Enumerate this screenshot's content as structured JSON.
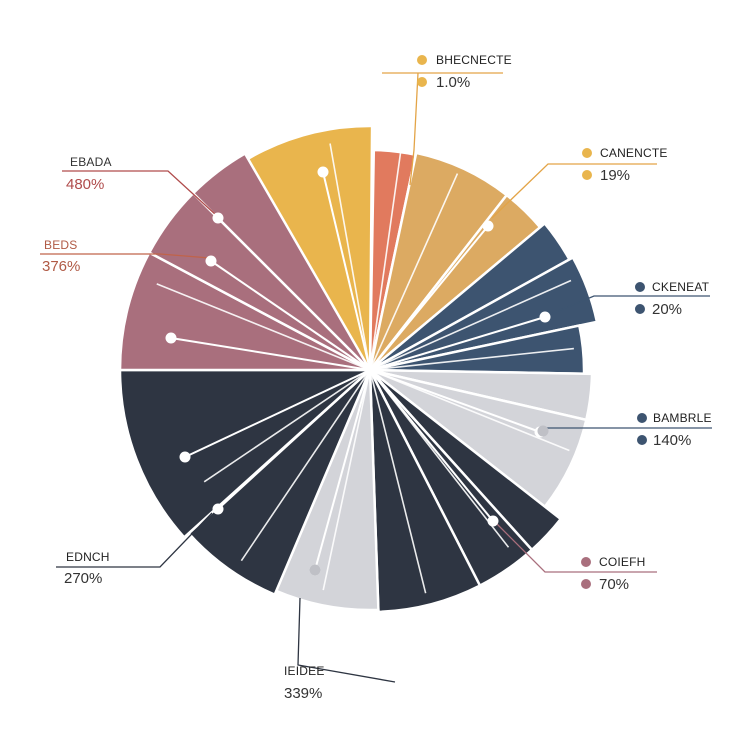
{
  "chart_data": {
    "type": "pie",
    "title": "",
    "legend": "none",
    "series": [
      {
        "label": "BHECNECTE",
        "value_text": "1.0%",
        "value": 1.0,
        "color": "#e17a5e",
        "callout": "label"
      },
      {
        "label": "CANENCTE",
        "value_text": "19%",
        "value": 19,
        "color": "#dcaa62",
        "callout": "dot"
      },
      {
        "label": "CKENEAT",
        "value_text": "20%",
        "value": 20,
        "color": "#3d5470",
        "callout": "dot"
      },
      {
        "label": "BAMBRLE",
        "value_text": "140%",
        "value": 140,
        "color": "#d3d4d9",
        "callout": "dot"
      },
      {
        "label": "COIEFH",
        "value_text": "70%",
        "value": 70,
        "color": "#2e3542",
        "callout": "dot"
      },
      {
        "label": "IEIDEE",
        "value_text": "339%",
        "value": 339,
        "color": "#d3d4d9",
        "callout": "none"
      },
      {
        "label": "EDNCH",
        "value_text": "270%",
        "value": 270,
        "color": "#2e3542",
        "callout": "none"
      },
      {
        "label": "BEDS",
        "value_text": "376%",
        "value": 376,
        "color": "#a96f7d",
        "callout": "none"
      },
      {
        "label": "EBADA",
        "value_text": "480%",
        "value": 480,
        "color": "#a96f7d",
        "callout": "none"
      }
    ],
    "slice_colors": {
      "coral": "#e17a5e",
      "gold": "#e9b54d",
      "sand": "#dcaa62",
      "navy": "#3d5470",
      "light_gray": "#d3d4d9",
      "charcoal": "#2e3542",
      "mauve": "#a96f7d"
    },
    "leader_colors": {
      "BHECNECTE": "#e3a447",
      "CANENCTE": "#e3a447",
      "CKENEAT": "#3d5470",
      "BAMBRLE": "#3d5470",
      "COIEFH": "#a96f7d",
      "IEIDEE": "#2e3542",
      "EDNCH": "#2e3542",
      "BEDS": "#c0634a",
      "EBADA": "#b04c4c"
    }
  }
}
